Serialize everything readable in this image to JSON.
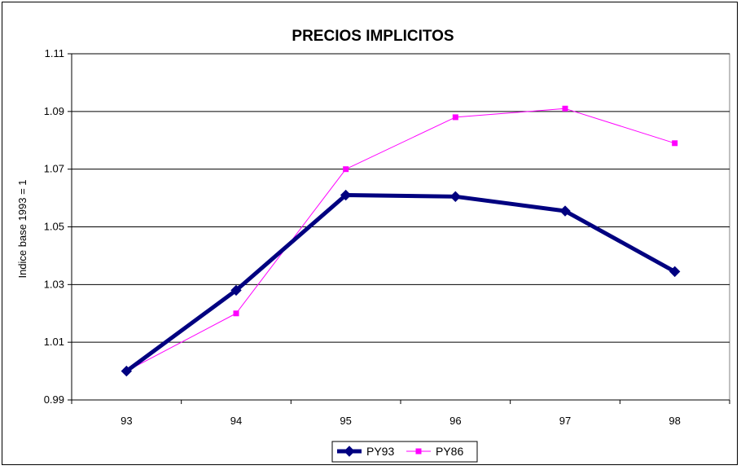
{
  "chart_data": {
    "type": "line",
    "title": "PRECIOS IMPLICITOS",
    "xlabel": "",
    "ylabel": "Indice base 1993 = 1",
    "categories": [
      "93",
      "94",
      "95",
      "96",
      "97",
      "98"
    ],
    "yticks": [
      "0.99",
      "1.01",
      "1.03",
      "1.05",
      "1.07",
      "1.09",
      "1.11"
    ],
    "ylim": [
      0.99,
      1.11
    ],
    "grid": "horizontal",
    "legend_position": "bottom",
    "series": [
      {
        "name": "PY93",
        "values": [
          1.0,
          1.028,
          1.061,
          1.0605,
          1.0555,
          1.0345
        ],
        "color": "#000080",
        "marker": "diamond"
      },
      {
        "name": "PY86",
        "values": [
          1.0,
          1.02,
          1.07,
          1.088,
          1.091,
          1.079
        ],
        "color": "#FF00FF",
        "marker": "square"
      }
    ]
  }
}
